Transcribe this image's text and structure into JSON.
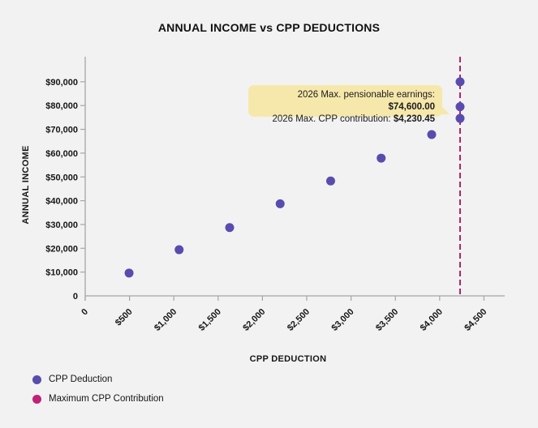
{
  "title": "ANNUAL INCOME vs CPP DEDUCTIONS",
  "colors": {
    "background": "#f2f2f2",
    "axis": "#a6a6a6",
    "tick_text": "#161616",
    "point": "#584cae",
    "max_line": "#aa256b",
    "legend_max_dot": "#c02278",
    "annotation_bg": "#f6e8ab"
  },
  "annotation": {
    "line1_label": "2026 Max. pensionable earnings: ",
    "line1_value": "$74,600.00",
    "line2_label": "2026 Max. CPP contribution: ",
    "line2_value": "$4,230.45"
  },
  "legend": {
    "items": [
      {
        "label": "CPP Deduction",
        "color": "#584cae"
      },
      {
        "label": "Maximum CPP Contribution",
        "color": "#c02278"
      }
    ]
  },
  "chart_data": {
    "type": "scatter",
    "title": "ANNUAL INCOME vs CPP DEDUCTIONS",
    "xlabel": "CPP DEDUCTION",
    "ylabel": "ANNUAL INCOME",
    "xlim": [
      0,
      4750
    ],
    "ylim": [
      0,
      95000
    ],
    "grid": false,
    "legend_position": "bottom-left",
    "x_ticks": {
      "values": [
        0,
        500,
        1000,
        1500,
        2000,
        2500,
        3000,
        3500,
        4000,
        4500
      ],
      "labels": [
        "0",
        "$500",
        "$1,000",
        "$1,500",
        "$2,000",
        "$2,500",
        "$3,000",
        "$3,500",
        "$4,000",
        "$4,500"
      ]
    },
    "y_ticks": {
      "values": [
        0,
        10000,
        20000,
        30000,
        40000,
        50000,
        60000,
        70000,
        80000,
        90000
      ],
      "labels": [
        "0",
        "$10,000",
        "$20,000",
        "$30,000",
        "$40,000",
        "$50,000",
        "$60,000",
        "$70,000",
        "$80,000",
        "$90,000"
      ]
    },
    "series": [
      {
        "name": "CPP Deduction",
        "points": [
          {
            "x": 495,
            "y": 9600
          },
          {
            "x": 1060,
            "y": 19400
          },
          {
            "x": 1630,
            "y": 28700
          },
          {
            "x": 2200,
            "y": 38700
          },
          {
            "x": 2770,
            "y": 48300
          },
          {
            "x": 3340,
            "y": 57900
          },
          {
            "x": 3910,
            "y": 67800
          },
          {
            "x": 4230.45,
            "y": 74600
          },
          {
            "x": 4230.45,
            "y": 79500
          },
          {
            "x": 4230.45,
            "y": 90000
          }
        ]
      }
    ],
    "max_cpp_contribution_line_x": 4230.45,
    "max_pensionable_earnings": 74600.0,
    "max_cpp_contribution": 4230.45
  }
}
